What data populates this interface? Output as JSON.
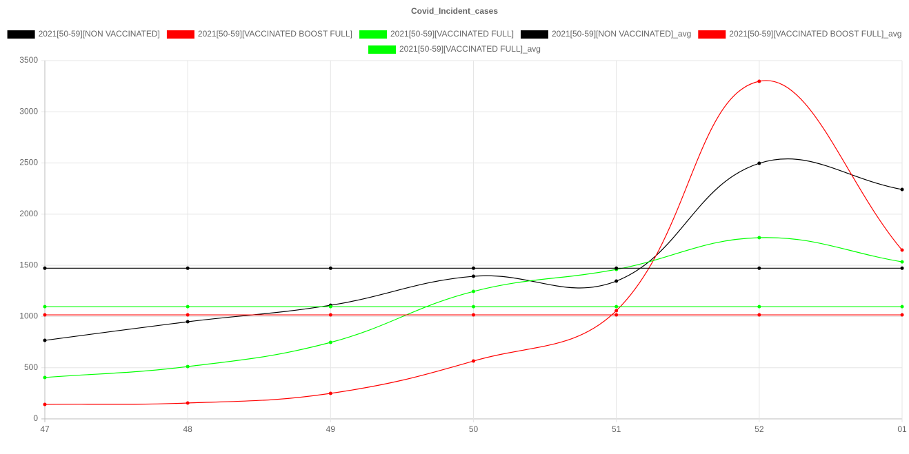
{
  "chart_data": {
    "type": "line",
    "title": "Covid_Incident_cases",
    "categories": [
      "47",
      "48",
      "49",
      "50",
      "51",
      "52",
      "01"
    ],
    "series": [
      {
        "name": "2021[50-59][NON VACCINATED]",
        "color": "#000000",
        "values": [
          767,
          949,
          1110,
          1393,
          1346,
          2497,
          2241
        ]
      },
      {
        "name": "2021[50-59][VACCINATED BOOST FULL]",
        "color": "#ff0000",
        "values": [
          141,
          155,
          249,
          565,
          1057,
          3298,
          1649
        ]
      },
      {
        "name": "2021[50-59][VACCINATED FULL]",
        "color": "#00ff00",
        "values": [
          404,
          511,
          747,
          1245,
          1460,
          1770,
          1534
        ]
      },
      {
        "name": "2021[50-59][NON VACCINATED]_avg",
        "color": "#000000",
        "values": [
          1472,
          1472,
          1472,
          1472,
          1472,
          1472,
          1472
        ]
      },
      {
        "name": "2021[50-59][VACCINATED BOOST FULL]_avg",
        "color": "#ff0000",
        "values": [
          1016,
          1016,
          1016,
          1016,
          1016,
          1016,
          1016
        ]
      },
      {
        "name": "2021[50-59][VACCINATED FULL]_avg",
        "color": "#00ff00",
        "values": [
          1096,
          1096,
          1096,
          1096,
          1096,
          1096,
          1096
        ]
      }
    ],
    "ylim": [
      0,
      3500
    ],
    "yticks": [
      0,
      500,
      1000,
      1500,
      2000,
      2500,
      3000,
      3500
    ],
    "grid": true
  }
}
